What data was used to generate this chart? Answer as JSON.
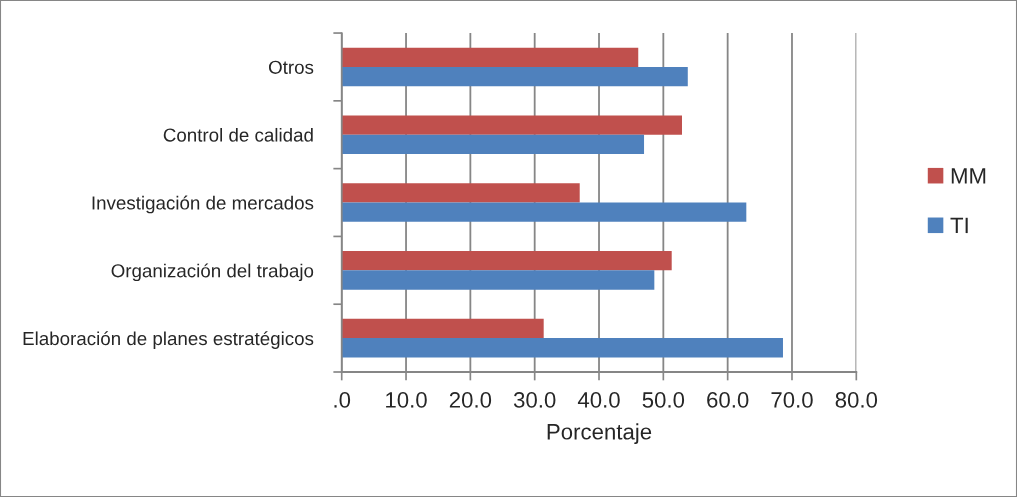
{
  "chart_data": {
    "type": "bar",
    "orientation": "horizontal",
    "categories": [
      "Otros",
      "Control de calidad",
      "Investigación de mercados",
      "Organización del trabajo",
      "Elaboración de planes estratégicos"
    ],
    "series": [
      {
        "name": "MM",
        "color": "#c0504d",
        "values": [
          46.1,
          52.9,
          37.0,
          51.3,
          31.4
        ]
      },
      {
        "name": "TI",
        "color": "#4f81bd",
        "values": [
          53.8,
          47.0,
          62.9,
          48.6,
          68.6
        ]
      }
    ],
    "xlabel": "Porcentaje",
    "xlim": [
      0,
      80
    ],
    "xticks": [
      {
        "value": 0,
        "label": ".0"
      },
      {
        "value": 10,
        "label": "10.0"
      },
      {
        "value": 20,
        "label": "20.0"
      },
      {
        "value": 30,
        "label": "30.0"
      },
      {
        "value": 40,
        "label": "40.0"
      },
      {
        "value": 50,
        "label": "50.0"
      },
      {
        "value": 60,
        "label": "60.0"
      },
      {
        "value": 70,
        "label": "70.0"
      },
      {
        "value": 80,
        "label": "80.0"
      }
    ],
    "grid": "x",
    "legend": "right"
  }
}
